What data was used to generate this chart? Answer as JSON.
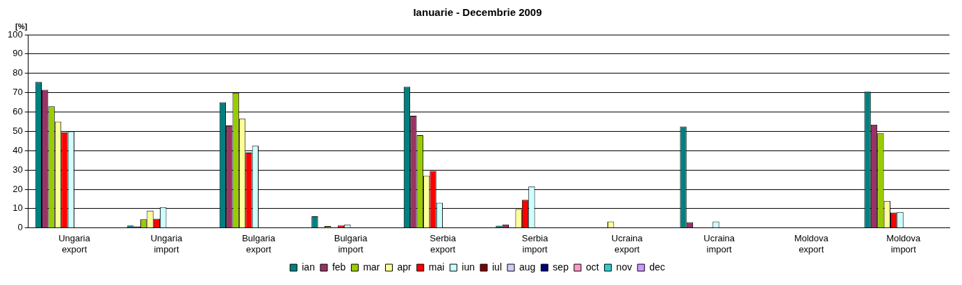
{
  "chart_data": {
    "type": "bar",
    "title": "Ianuarie - Decembrie 2009",
    "ylabel": "[%]",
    "categories": [
      "Ungaria export",
      "Ungaria import",
      "Bulgaria export",
      "Bulgaria import",
      "Serbia export",
      "Serbia import",
      "Ucraina export",
      "Ucraina import",
      "Moldova export",
      "Moldova import"
    ],
    "series": [
      {
        "name": "ian",
        "color": "#008080",
        "values": [
          75.5,
          1.3,
          65,
          6,
          73,
          1.2,
          null,
          52.5,
          null,
          70.5
        ]
      },
      {
        "name": "feb",
        "color": "#993366",
        "values": [
          71.5,
          0.8,
          53,
          null,
          58,
          1.8,
          null,
          3,
          null,
          53.5
        ]
      },
      {
        "name": "mar",
        "color": "#99cc00",
        "values": [
          63,
          4.5,
          70,
          1,
          48,
          null,
          null,
          null,
          null,
          49
        ]
      },
      {
        "name": "apr",
        "color": "#ffff99",
        "values": [
          55,
          9,
          56.5,
          null,
          27,
          9.8,
          3.3,
          null,
          null,
          14
        ]
      },
      {
        "name": "mai",
        "color": "#ff0000",
        "values": [
          49.5,
          4.8,
          39,
          1.3,
          29.5,
          14.5,
          null,
          null,
          null,
          8
        ]
      },
      {
        "name": "iun",
        "color": "#ccffff",
        "values": [
          50,
          10.8,
          42.5,
          1.8,
          13,
          21.5,
          null,
          3.3,
          null,
          8.3
        ]
      },
      {
        "name": "iul",
        "color": "#800000",
        "values": [
          null,
          null,
          null,
          null,
          null,
          null,
          null,
          null,
          null,
          null
        ]
      },
      {
        "name": "aug",
        "color": "#ccccff",
        "values": [
          null,
          null,
          null,
          null,
          null,
          null,
          null,
          null,
          null,
          null
        ]
      },
      {
        "name": "sep",
        "color": "#000080",
        "values": [
          null,
          null,
          null,
          null,
          null,
          null,
          null,
          null,
          null,
          null
        ]
      },
      {
        "name": "oct",
        "color": "#ff99cc",
        "values": [
          null,
          null,
          null,
          null,
          null,
          null,
          null,
          null,
          null,
          null
        ]
      },
      {
        "name": "nov",
        "color": "#33cccc",
        "values": [
          null,
          null,
          null,
          null,
          null,
          null,
          null,
          null,
          null,
          null
        ]
      },
      {
        "name": "dec",
        "color": "#cc99ff",
        "values": [
          null,
          null,
          null,
          null,
          null,
          null,
          null,
          null,
          null,
          null
        ]
      }
    ],
    "ylim": [
      0,
      100
    ],
    "yticks": [
      0,
      10,
      20,
      30,
      40,
      50,
      60,
      70,
      80,
      90,
      100
    ],
    "grid": "y",
    "legend": "bottom"
  }
}
